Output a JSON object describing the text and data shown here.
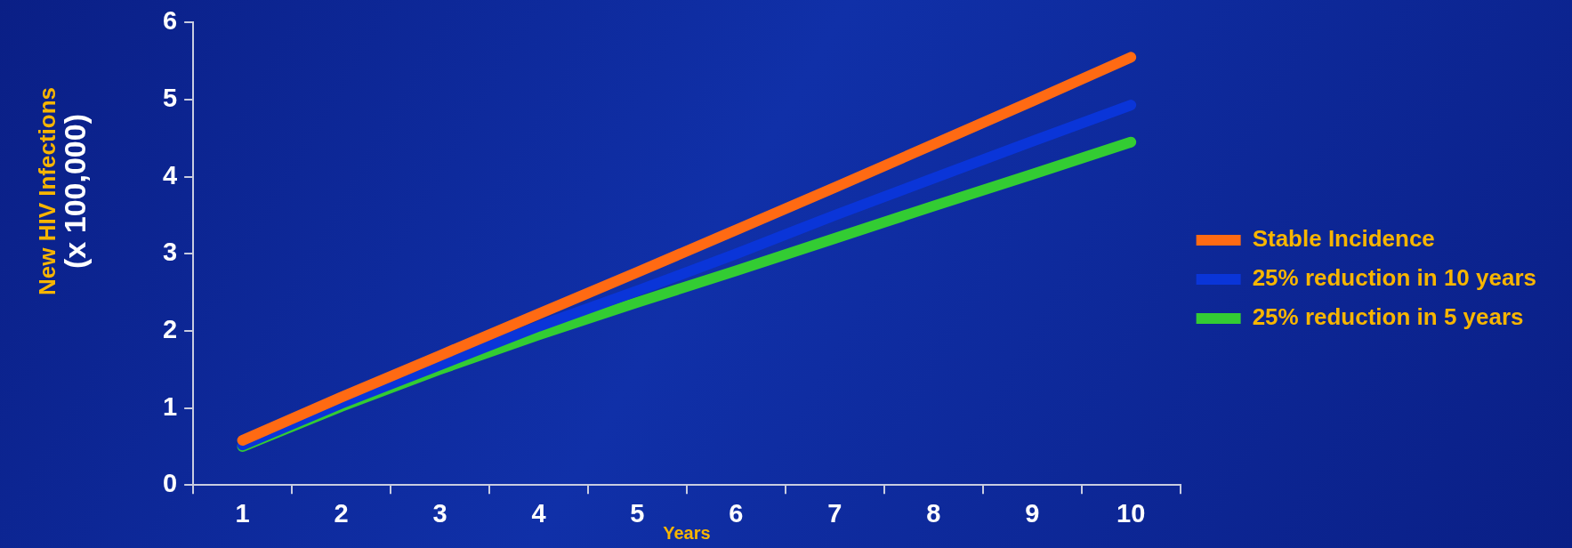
{
  "chart_data": {
    "type": "line",
    "xlabel": "Years",
    "ylabel": "New HIV Infections\n(x 100,000)",
    "categories": [
      "1",
      "2",
      "3",
      "4",
      "5",
      "6",
      "7",
      "8",
      "9",
      "10"
    ],
    "series": [
      {
        "name": "Stable Incidence",
        "color": "#ff6a13",
        "values": [
          0.58,
          1.14,
          1.68,
          2.22,
          2.76,
          3.31,
          3.86,
          4.42,
          4.98,
          5.55
        ]
      },
      {
        "name": "25% reduction in 10 years",
        "color": "#0a35d8",
        "values": [
          0.52,
          1.06,
          1.56,
          2.06,
          2.52,
          3.0,
          3.5,
          3.98,
          4.46,
          4.93
        ]
      },
      {
        "name": "25% reduction in 5 years",
        "color": "#33cc33",
        "values": [
          0.5,
          1.02,
          1.5,
          1.95,
          2.37,
          2.78,
          3.2,
          3.62,
          4.03,
          4.45
        ]
      }
    ],
    "ylim": [
      0,
      6
    ],
    "yticks": [
      0,
      1,
      2,
      3,
      4,
      5,
      6
    ],
    "grid": false,
    "legend": "right",
    "marker": "none",
    "line_style": "solid"
  }
}
